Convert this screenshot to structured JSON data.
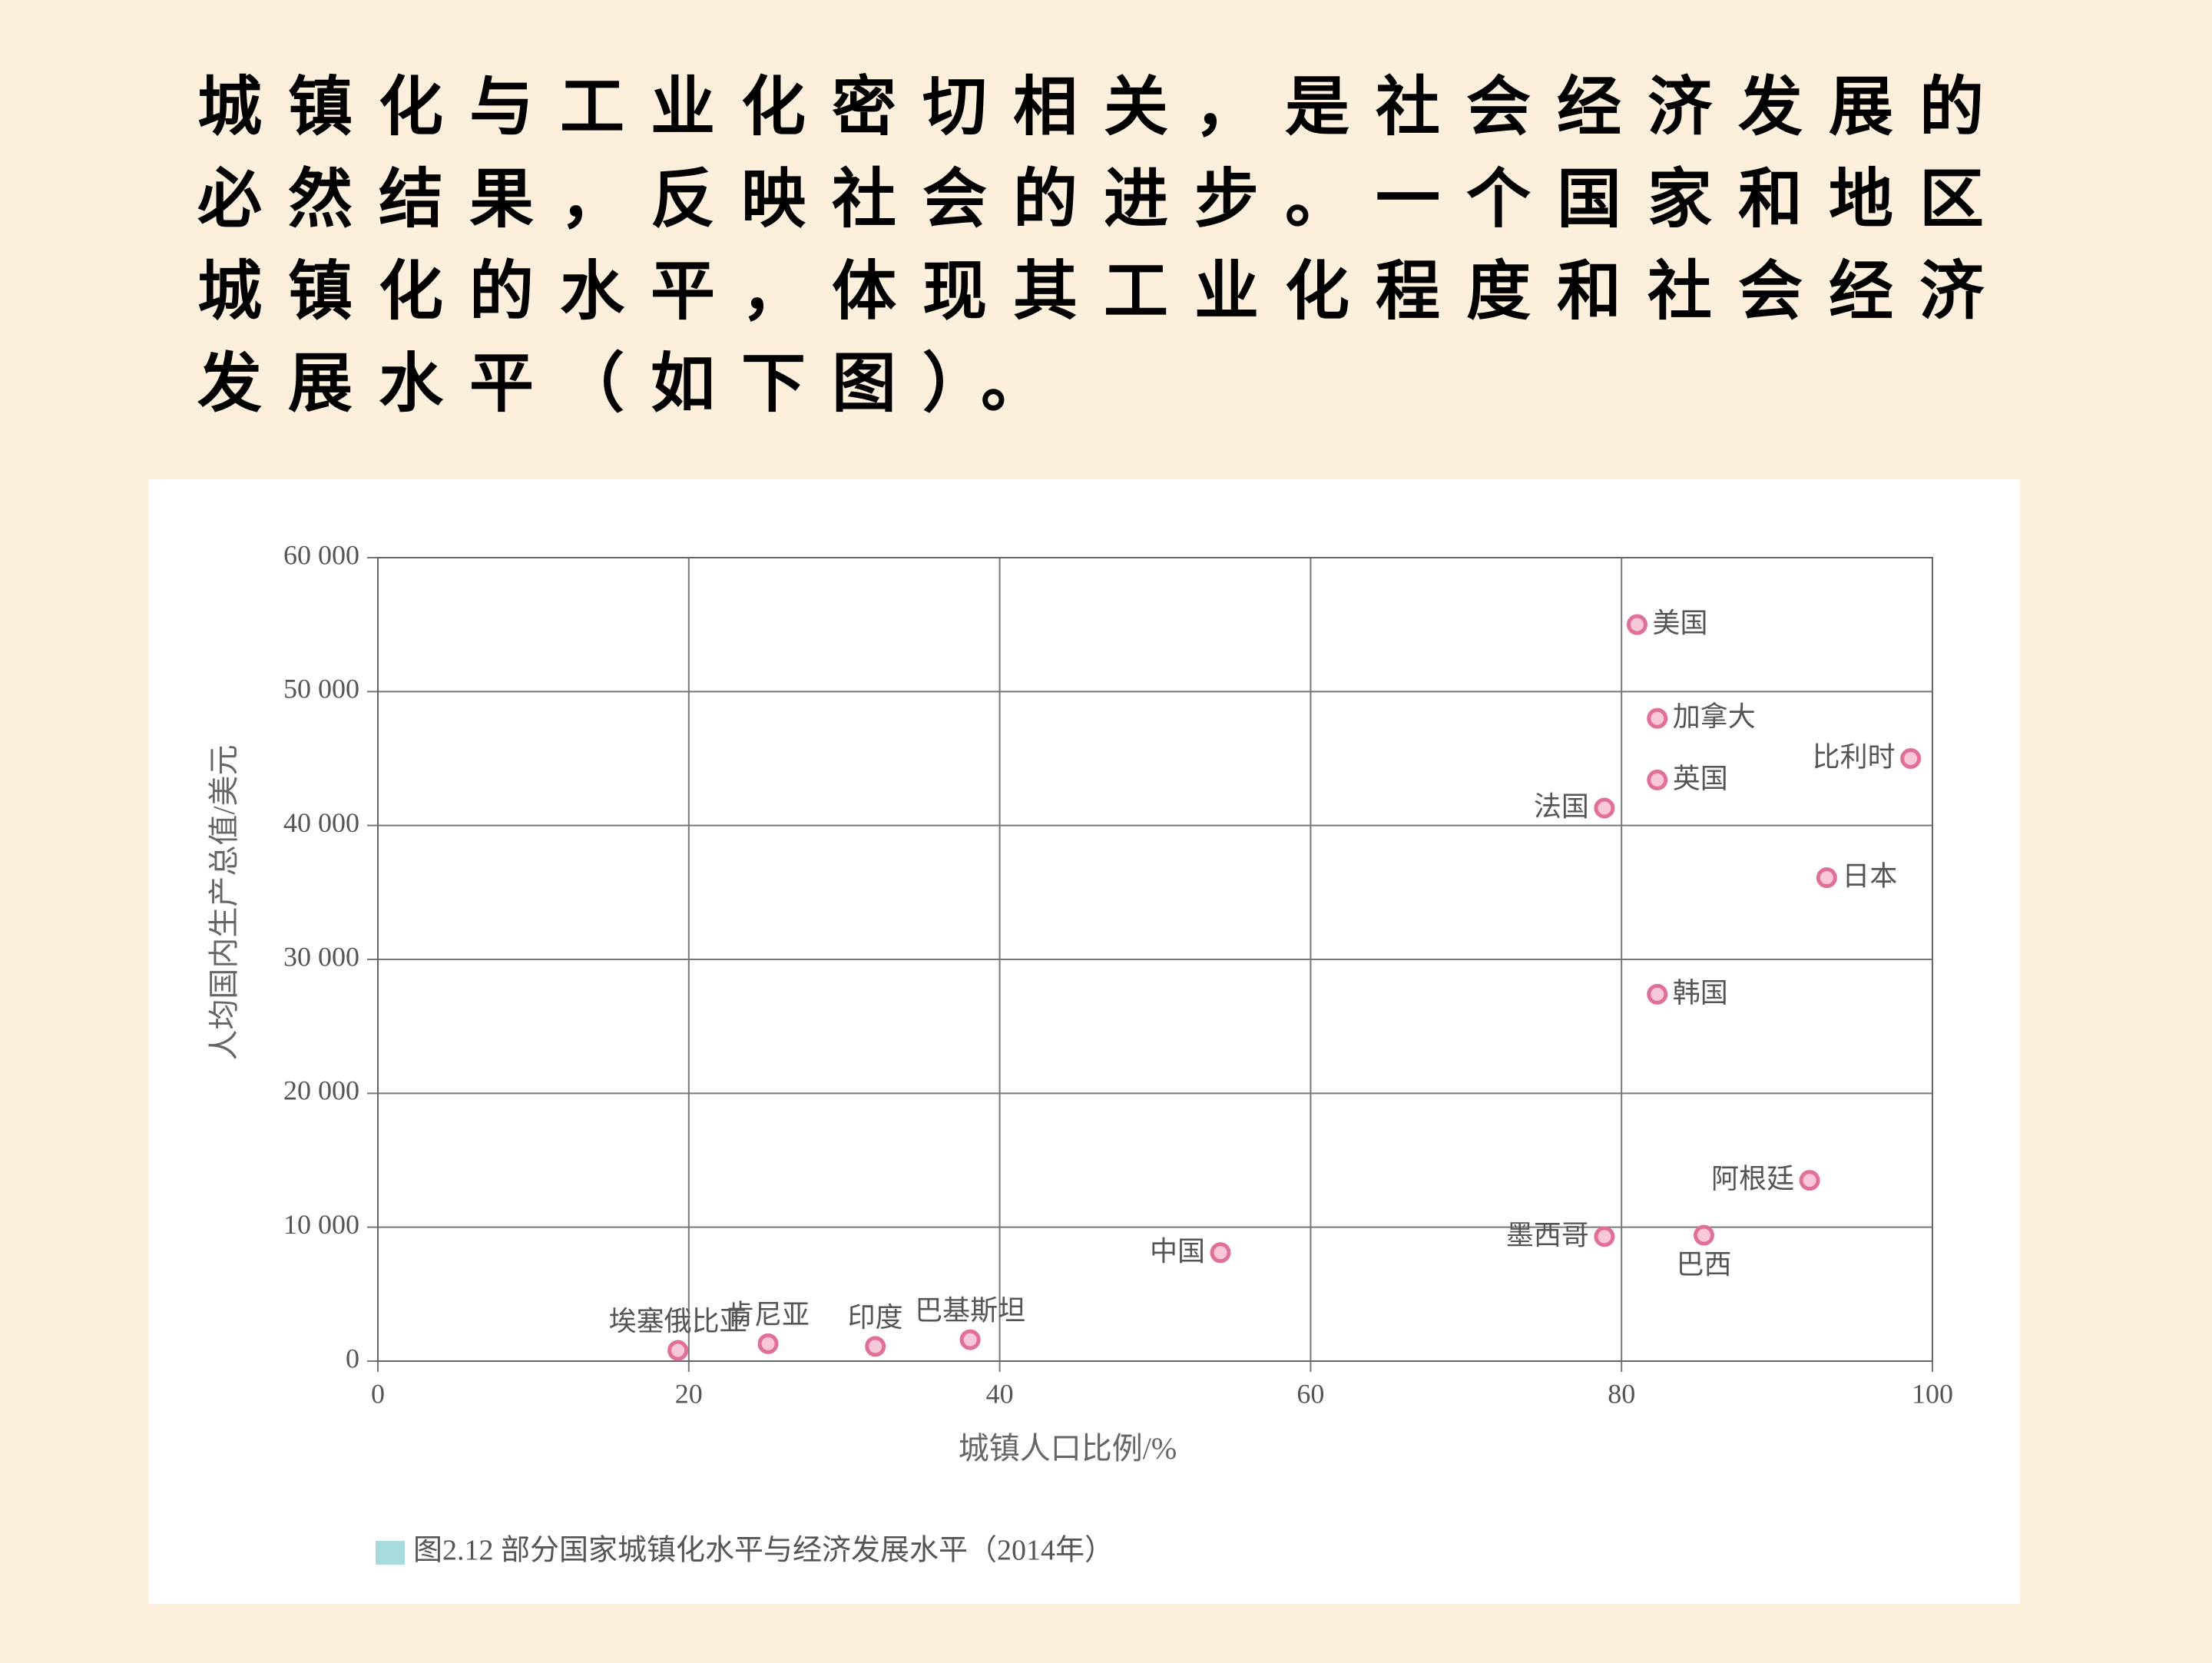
{
  "paragraph": [
    "城镇化与工业化密切相关，是社会经济发展的",
    "必然结果，反映社会的进步。一个国家和地区",
    "城镇化的水平，体现其工业化程度和社会经济",
    "发展水平（如下图）。"
  ],
  "chart_data": {
    "type": "scatter",
    "caption": "图2.12  部分国家城镇化水平与经济发展水平（2014年）",
    "x_label": "城镇人口比例/%",
    "y_label": "人均国内生产总值/美元",
    "point_labels": [
      "美国",
      "加拿大",
      "比利时",
      "英国",
      "法国",
      "日本",
      "韩国",
      "阿根廷",
      "墨西哥",
      "巴西",
      "中国",
      "埃塞俄比亚",
      "肯尼亚",
      "印度",
      "巴基斯坦"
    ],
    "x": [
      81,
      82.3,
      98.6,
      82.3,
      78.9,
      93.2,
      82.3,
      92.1,
      78.9,
      85.3,
      54.2,
      19.3,
      25.1,
      32,
      38.1
    ],
    "values": [
      55000,
      48000,
      45000,
      43400,
      41300,
      36100,
      27400,
      13500,
      9300,
      9400,
      8100,
      800,
      1300,
      1100,
      1600
    ],
    "color": "#e0709a",
    "xlim": [
      0,
      100
    ],
    "xticks": [
      0,
      20,
      40,
      60,
      80,
      100
    ],
    "ylim": [
      0,
      60000
    ],
    "yticks": [
      {
        "value": 0,
        "label": "0"
      },
      {
        "value": 10000,
        "label": "10 000"
      },
      {
        "value": 20000,
        "label": "20 000"
      },
      {
        "value": 30000,
        "label": "30 000"
      },
      {
        "value": 40000,
        "label": "40 000"
      },
      {
        "value": 50000,
        "label": "50 000"
      },
      {
        "value": 60000,
        "label": "60 000"
      }
    ],
    "grid": true
  }
}
